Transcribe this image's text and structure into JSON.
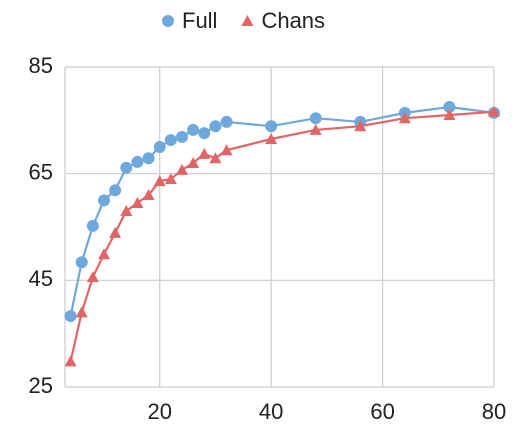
{
  "chart_data": {
    "type": "line",
    "x": [
      4,
      6,
      8,
      10,
      12,
      14,
      16,
      18,
      20,
      22,
      24,
      26,
      28,
      30,
      32,
      40,
      48,
      56,
      64,
      72,
      80
    ],
    "series": [
      {
        "name": "Full",
        "color": "#6fa8dc",
        "marker": "circle",
        "values": [
          38.3,
          48.4,
          55.2,
          60.0,
          61.9,
          66.1,
          67.2,
          67.9,
          70.0,
          71.3,
          71.9,
          73.2,
          72.6,
          73.9,
          74.7,
          73.9,
          75.4,
          74.7,
          76.4,
          77.5,
          76.4
        ]
      },
      {
        "name": "Chans",
        "color": "#e06666",
        "marker": "triangle",
        "values": [
          29.8,
          39.0,
          45.6,
          49.9,
          53.9,
          58.0,
          59.5,
          61.0,
          63.6,
          64.0,
          65.7,
          67.0,
          68.7,
          67.9,
          69.4,
          71.5,
          73.2,
          73.9,
          75.4,
          76.0,
          76.6
        ]
      }
    ],
    "xlim": [
      3,
      80
    ],
    "xticks": [
      20,
      40,
      60,
      80
    ],
    "ylim": [
      25,
      85
    ],
    "yticks": [
      25,
      45,
      65,
      85
    ],
    "grid": true,
    "legend": "top"
  }
}
